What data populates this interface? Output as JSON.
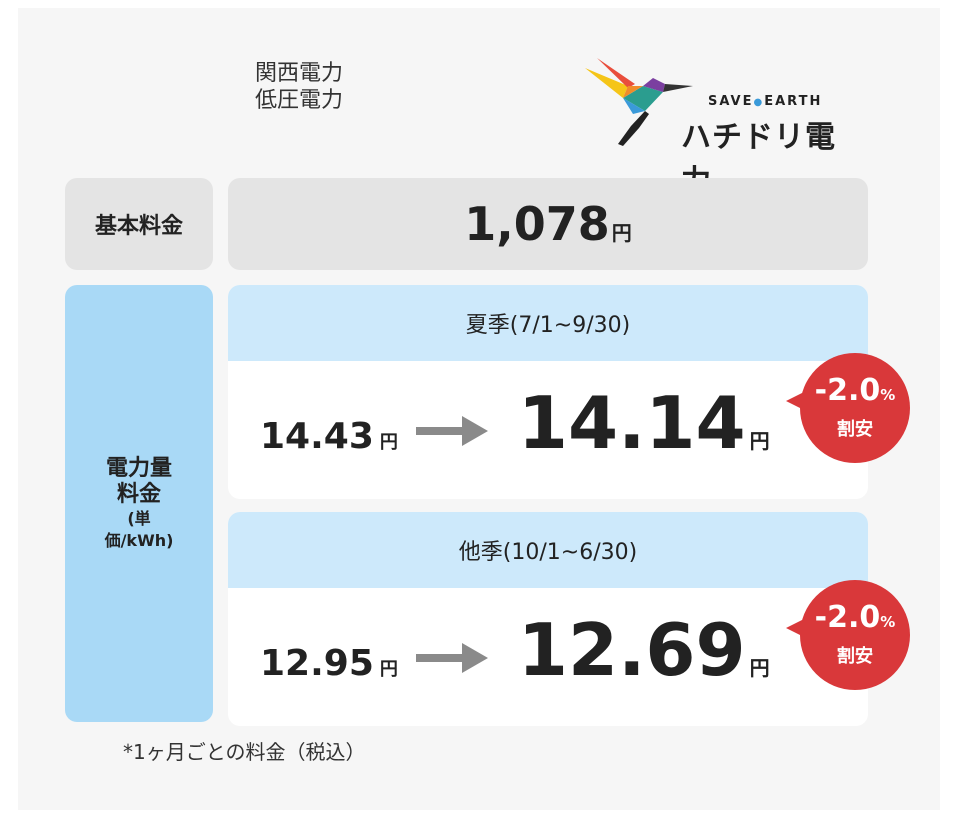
{
  "header": {
    "utility": [
      "関西電力",
      "低圧電力"
    ],
    "logo": {
      "tagline_left": "SAVE",
      "tagline_right": "EARTH",
      "name": "ハチドリ電力"
    }
  },
  "basic_fee": {
    "label": "基本料金",
    "value": "1,078",
    "unit": "円"
  },
  "energy_charge": {
    "label": [
      "電力量",
      "料金",
      "(単",
      "価/kWh)"
    ],
    "seasons": [
      {
        "name": "夏季(7/1~9/30)",
        "old_price": "14.43",
        "old_unit": "円",
        "new_price": "14.14",
        "new_unit": "円",
        "discount": "-2.0",
        "discount_unit": "%",
        "discount_label": "割安"
      },
      {
        "name": "他季(10/1~6/30)",
        "old_price": "12.95",
        "old_unit": "円",
        "new_price": "12.69",
        "new_unit": "円",
        "discount": "-2.0",
        "discount_unit": "%",
        "discount_label": "割安"
      }
    ]
  },
  "footnote": "*1ヶ月ごとの料金（税込）"
}
